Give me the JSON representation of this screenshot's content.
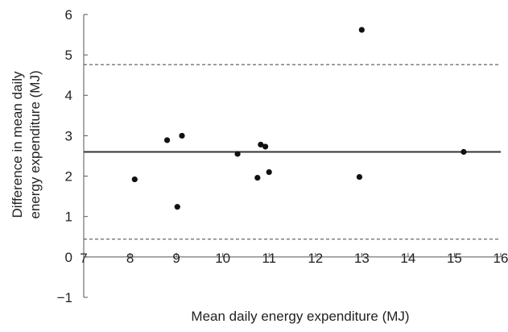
{
  "chart_data": {
    "type": "scatter",
    "title": "",
    "xlabel": "Mean daily energy expenditure (MJ)",
    "ylabel_lines": [
      "Difference in mean daily",
      "energy expenditure (MJ)"
    ],
    "xlim": [
      7,
      16
    ],
    "ylim": [
      -1,
      6
    ],
    "x_ticks": [
      7,
      8,
      9,
      10,
      11,
      12,
      13,
      14,
      15,
      16
    ],
    "y_ticks": [
      -1,
      0,
      1,
      2,
      3,
      4,
      5,
      6
    ],
    "y_tick_labels": [
      "−1",
      "0",
      "1",
      "2",
      "3",
      "4",
      "5",
      "6"
    ],
    "reference_lines": [
      {
        "y": 2.6,
        "style": "solid"
      },
      {
        "y": 4.76,
        "style": "dashed"
      },
      {
        "y": 0.44,
        "style": "dashed"
      }
    ],
    "points": [
      {
        "x": 8.1,
        "y": 1.92
      },
      {
        "x": 8.8,
        "y": 2.89
      },
      {
        "x": 9.02,
        "y": 1.24
      },
      {
        "x": 9.12,
        "y": 3.0
      },
      {
        "x": 10.32,
        "y": 2.55
      },
      {
        "x": 10.75,
        "y": 1.96
      },
      {
        "x": 10.82,
        "y": 2.78
      },
      {
        "x": 10.92,
        "y": 2.73
      },
      {
        "x": 11.0,
        "y": 2.1
      },
      {
        "x": 12.95,
        "y": 1.98
      },
      {
        "x": 13.0,
        "y": 5.62
      },
      {
        "x": 15.2,
        "y": 2.6
      }
    ],
    "grid": false,
    "colors": {
      "points": "#111111",
      "lines": "#333333"
    }
  }
}
